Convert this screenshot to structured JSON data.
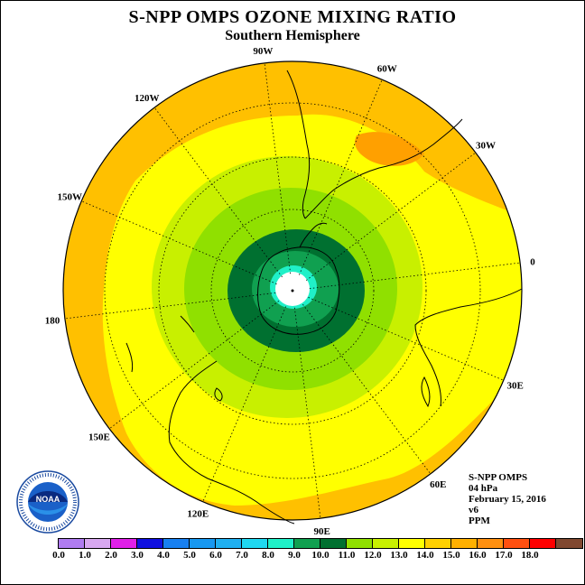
{
  "title": "S-NPP OMPS OZONE MIXING RATIO",
  "subtitle": "Southern Hemisphere",
  "longitude_labels": [
    "90W",
    "60W",
    "30W",
    "0",
    "30E",
    "60E",
    "90E",
    "120E",
    "150E",
    "180",
    "150W",
    "120W"
  ],
  "info": {
    "satellite": "S-NPP OMPS",
    "pressure": "04 hPa",
    "date": "February 15, 2016",
    "version": "v6",
    "units": "PPM"
  },
  "logo_text": "NOAA",
  "colorbar": {
    "colors": [
      "#b07cf0",
      "#d8a8f0",
      "#e020e8",
      "#1010e0",
      "#1880f0",
      "#1898f0",
      "#20b0f0",
      "#20d8f0",
      "#20f0c8",
      "#10a050",
      "#007030",
      "#90e000",
      "#c8f000",
      "#ffff00",
      "#ffd000",
      "#ffb000",
      "#ff9010",
      "#ff5010",
      "#ff0000",
      "#804830"
    ],
    "tick_labels": [
      "0.0",
      "1.0",
      "2.0",
      "3.0",
      "4.0",
      "5.0",
      "6.0",
      "7.0",
      "8.0",
      "9.0",
      "10.0",
      "11.0",
      "12.0",
      "13.0",
      "14.0",
      "15.0",
      "16.0",
      "17.0",
      "18.0"
    ]
  }
}
